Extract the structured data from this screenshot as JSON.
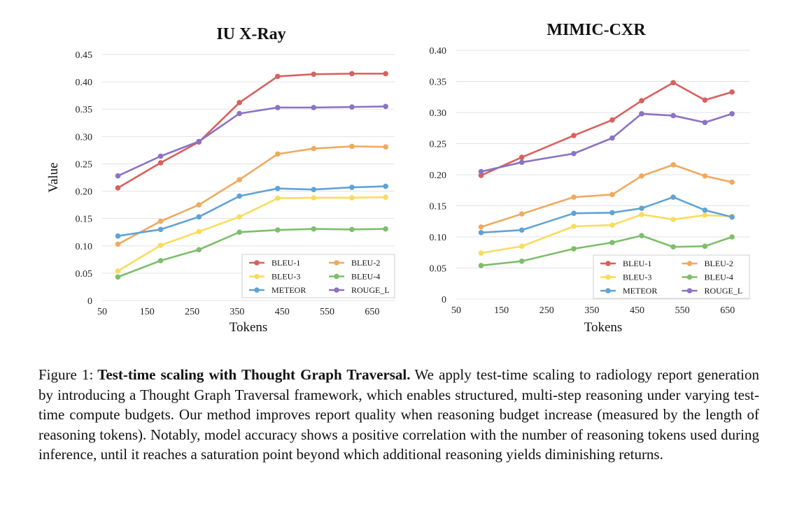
{
  "colors": {
    "BLEU-1": "#d9605c",
    "BLEU-2": "#f0aa5f",
    "BLEU-3": "#f9dc5c",
    "BLEU-4": "#7ebe6b",
    "METEOR": "#5fa3d6",
    "ROUGE_L": "#8a73c4",
    "grid": "#e3e3e3"
  },
  "chart_data": [
    {
      "type": "line",
      "title": "IU X-Ray",
      "xlabel": "Tokens",
      "ylabel": "Value",
      "xlim": [
        50,
        700
      ],
      "ylim": [
        0,
        0.45
      ],
      "xticks": [
        "50",
        "150",
        "250",
        "350",
        "450",
        "550",
        "650"
      ],
      "yticks": [
        "0",
        "0.05",
        "0.10",
        "0.15",
        "0.20",
        "0.25",
        "0.30",
        "0.35",
        "0.40",
        "0.45"
      ],
      "grid": true,
      "legend_position": "bottom-right",
      "x": [
        85,
        180,
        265,
        355,
        440,
        520,
        605,
        680
      ],
      "series": [
        {
          "name": "BLEU-1",
          "values": [
            0.206,
            0.252,
            0.29,
            0.362,
            0.41,
            0.414,
            0.415,
            0.415
          ]
        },
        {
          "name": "BLEU-2",
          "values": [
            0.103,
            0.145,
            0.175,
            0.221,
            0.268,
            0.278,
            0.282,
            0.281
          ]
        },
        {
          "name": "BLEU-3",
          "values": [
            0.054,
            0.101,
            0.126,
            0.153,
            0.187,
            0.188,
            0.188,
            0.189
          ]
        },
        {
          "name": "BLEU-4",
          "values": [
            0.043,
            0.073,
            0.093,
            0.125,
            0.129,
            0.131,
            0.13,
            0.131
          ]
        },
        {
          "name": "METEOR",
          "values": [
            0.118,
            0.13,
            0.153,
            0.191,
            0.205,
            0.203,
            0.207,
            0.209
          ]
        },
        {
          "name": "ROUGE_L",
          "values": [
            0.228,
            0.264,
            0.291,
            0.342,
            0.353,
            0.353,
            0.354,
            0.355
          ]
        }
      ]
    },
    {
      "type": "line",
      "title": "MIMIC-CXR",
      "xlabel": "Tokens",
      "ylabel": "",
      "xlim": [
        50,
        700
      ],
      "ylim": [
        0,
        0.4
      ],
      "xticks": [
        "50",
        "150",
        "250",
        "350",
        "450",
        "550",
        "650"
      ],
      "yticks": [
        "0",
        "0.05",
        "0.10",
        "0.15",
        "0.20",
        "0.25",
        "0.30",
        "0.35",
        "0.40"
      ],
      "grid": true,
      "legend_position": "bottom-right",
      "x": [
        105,
        195,
        310,
        395,
        460,
        530,
        600,
        660
      ],
      "series": [
        {
          "name": "BLEU-1",
          "values": [
            0.199,
            0.228,
            0.263,
            0.288,
            0.319,
            0.348,
            0.32,
            0.333
          ]
        },
        {
          "name": "BLEU-2",
          "values": [
            0.116,
            0.137,
            0.164,
            0.168,
            0.198,
            0.216,
            0.198,
            0.188
          ]
        },
        {
          "name": "BLEU-3",
          "values": [
            0.074,
            0.085,
            0.117,
            0.119,
            0.136,
            0.128,
            0.135,
            0.133
          ]
        },
        {
          "name": "BLEU-4",
          "values": [
            0.054,
            0.061,
            0.081,
            0.091,
            0.102,
            0.084,
            0.085,
            0.1
          ]
        },
        {
          "name": "METEOR",
          "values": [
            0.107,
            0.111,
            0.138,
            0.139,
            0.146,
            0.164,
            0.143,
            0.132
          ]
        },
        {
          "name": "ROUGE_L",
          "values": [
            0.205,
            0.22,
            0.234,
            0.259,
            0.298,
            0.295,
            0.284,
            0.298
          ]
        }
      ]
    }
  ],
  "caption": {
    "label": "Figure 1:",
    "bold": "Test-time scaling with Thought Graph Traversal.",
    "text": "We apply test-time scaling to radiology report generation by introducing a Thought Graph Traversal framework, which enables structured, multi-step reasoning under varying test-time compute budgets. Our method improves report quality when reasoning budget increase (measured by the length of reasoning tokens). Notably, model accuracy shows a positive correlation with the number of reasoning tokens used during inference, until it reaches a saturation point beyond which additional reasoning yields diminishing returns."
  }
}
